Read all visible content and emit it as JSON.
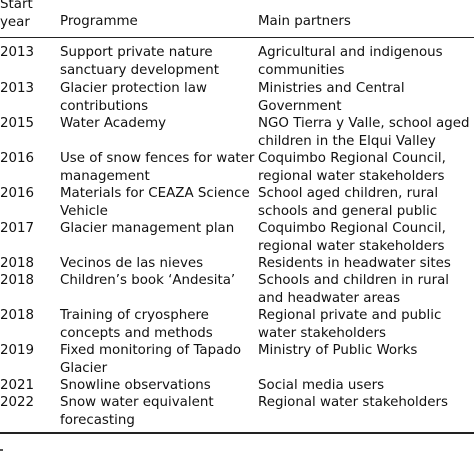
{
  "table": {
    "headers": {
      "start_year": "Start\nyear",
      "programme": "Programme",
      "partners": "Main partners"
    },
    "rows": [
      {
        "year": "2013",
        "programme": "Support private nature sanctuary development",
        "partners": "Agricultural and indigenous communities"
      },
      {
        "year": "2013",
        "programme": "Glacier protection law contributions",
        "partners": "Ministries and Central Government"
      },
      {
        "year": "2015",
        "programme": "Water Academy",
        "partners": "NGO Tierra y Valle, school aged children in the Elqui Valley"
      },
      {
        "year": "2016",
        "programme": "Use of snow fences for water management",
        "partners": "Coquimbo Regional Council, regional water stakeholders"
      },
      {
        "year": "2016",
        "programme": "Materials for CEAZA Science Vehicle",
        "partners": "School aged children, rural schools and general public"
      },
      {
        "year": "2017",
        "programme": "Glacier management plan",
        "partners": "Coquimbo Regional Council, regional water stakeholders"
      },
      {
        "year": "2018",
        "programme": "Vecinos de las nieves",
        "partners": "Residents in headwater sites"
      },
      {
        "year": "2018",
        "programme": "Children’s book ‘Andesita’",
        "partners": "Schools and children in rural and headwater areas"
      },
      {
        "year": "2018",
        "programme": "Training of cryosphere concepts and methods",
        "partners": "Regional private and public water stakeholders"
      },
      {
        "year": "2019",
        "programme": "Fixed monitoring of Tapado Glacier",
        "partners": "Ministry of Public Works"
      },
      {
        "year": "2021",
        "programme": "Snowline observations",
        "partners": "Social media users"
      },
      {
        "year": "2022",
        "programme": "Snow water equivalent forecasting",
        "partners": "Regional water stakeholders"
      }
    ]
  }
}
